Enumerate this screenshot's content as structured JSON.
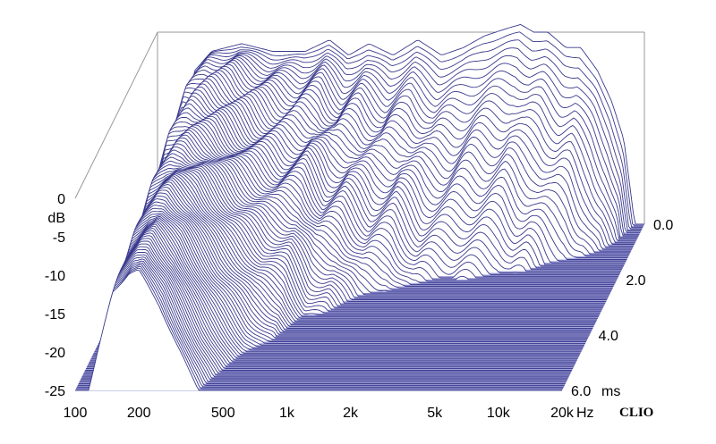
{
  "chart_data": {
    "type": "waterfall-3d",
    "title": "",
    "brand": "CLIO",
    "x_axis": {
      "scale": "log",
      "range": [
        100,
        20000
      ],
      "unit": "Hz",
      "tick_values": [
        100,
        200,
        500,
        1000,
        2000,
        5000,
        10000,
        20000
      ],
      "tick_labels": [
        "100",
        "200",
        "500",
        "1k",
        "2k",
        "5k",
        "10k",
        "20k"
      ]
    },
    "y_axis": {
      "unit": "dB",
      "range": [
        -25,
        0
      ],
      "tick_values": [
        0,
        -5,
        -10,
        -15,
        -20,
        -25
      ],
      "tick_labels": [
        "0",
        "-5",
        "-10",
        "-15",
        "-20",
        "-25"
      ]
    },
    "z_axis": {
      "unit": "ms",
      "range": [
        0.0,
        6.0
      ],
      "tick_values": [
        0.0,
        2.0,
        4.0,
        6.0
      ],
      "tick_labels": [
        "0.0",
        "2.0",
        "4.0",
        "6.0"
      ]
    },
    "slice_count": 100,
    "first_slice_response": [
      {
        "f": 100,
        "db": -25
      },
      {
        "f": 125,
        "db": -14
      },
      {
        "f": 150,
        "db": -5
      },
      {
        "f": 180,
        "db": -2.5
      },
      {
        "f": 250,
        "db": -1.5
      },
      {
        "f": 350,
        "db": -2.5
      },
      {
        "f": 500,
        "db": -2.5
      },
      {
        "f": 650,
        "db": -1.0
      },
      {
        "f": 800,
        "db": -3.0
      },
      {
        "f": 1000,
        "db": -1.5
      },
      {
        "f": 1300,
        "db": -3.0
      },
      {
        "f": 1700,
        "db": -1.0
      },
      {
        "f": 2200,
        "db": -3.0
      },
      {
        "f": 2800,
        "db": -2.0
      },
      {
        "f": 3500,
        "db": -0.5
      },
      {
        "f": 4500,
        "db": 0.5
      },
      {
        "f": 5200,
        "db": 1.0
      },
      {
        "f": 6000,
        "db": 0.0
      },
      {
        "f": 7000,
        "db": 0.0
      },
      {
        "f": 8500,
        "db": -2.0
      },
      {
        "f": 10000,
        "db": -2.0
      },
      {
        "f": 12000,
        "db": -5.0
      },
      {
        "f": 14000,
        "db": -9.0
      },
      {
        "f": 16000,
        "db": -14.0
      },
      {
        "f": 18000,
        "db": -25
      },
      {
        "f": 20000,
        "db": -25
      }
    ],
    "colors": {
      "trace": "#3a3a8e",
      "floor": "#a9a9dc",
      "floor_line": "#7a7ac4",
      "frame": "#9a9a9a"
    }
  }
}
